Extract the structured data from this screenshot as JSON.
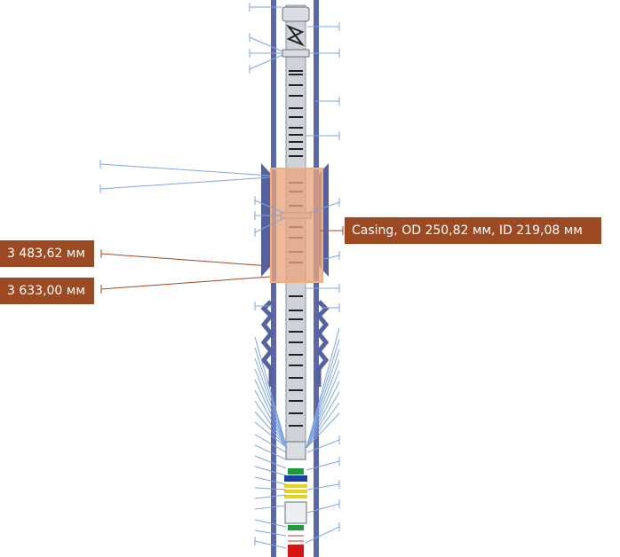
{
  "colors": {
    "label_bg": "#9c4a24",
    "callout_line_light": "#7ea6e0",
    "callout_line_dark": "#9c4a24",
    "casing_wall": "#5560a3",
    "tube_body": "#cfd2d8",
    "highlight": "#e8a57d",
    "highlight_border": "#f0b27a"
  },
  "labels": {
    "depth_top": "3 483,62 мм",
    "depth_bottom": "3 633,00 мм",
    "casing": "Casing, OD 250,82 мм, ID 219,08 мм"
  },
  "icons": {
    "scheme": "well-construction-schematic"
  }
}
